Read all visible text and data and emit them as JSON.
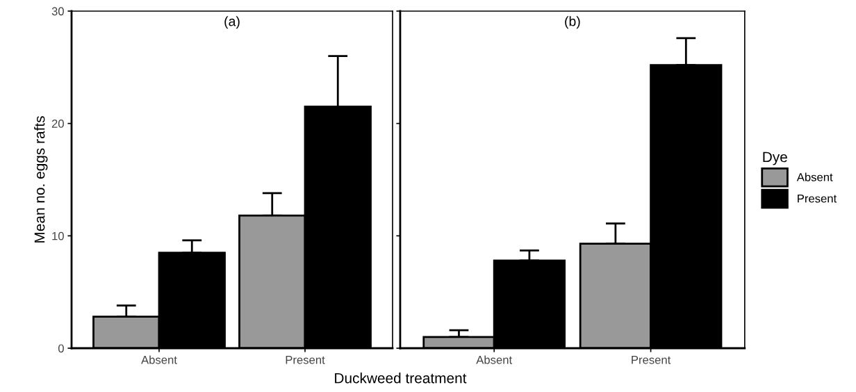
{
  "chart_data": [
    {
      "type": "bar",
      "title": "(a)",
      "xlabel": "Duckweed treatment",
      "ylabel": "Mean no. eggs rafts",
      "categories": [
        "Absent",
        "Present"
      ],
      "series": [
        {
          "color": "#999999",
          "values": [
            2.8,
            11.8
          ],
          "errors": [
            [
              2.8,
              3.8
            ],
            [
              11.8,
              13.8
            ]
          ]
        },
        {
          "color": "#000000",
          "values": [
            8.5,
            21.5
          ],
          "errors": [
            [
              8.5,
              9.6
            ],
            [
              21.5,
              26.0
            ]
          ]
        }
      ],
      "ylim": [
        0,
        30
      ],
      "yticks": [
        0,
        10,
        20,
        30
      ],
      "grid": false
    },
    {
      "type": "bar",
      "title": "(b)",
      "categories": [
        "Absent",
        "Present"
      ],
      "legend_title": "Dye",
      "series": [
        {
          "name": "Absent",
          "color": "#999999",
          "values": [
            1.0,
            9.3
          ],
          "errors": [
            [
              1.0,
              1.6
            ],
            [
              9.3,
              11.1
            ]
          ]
        },
        {
          "name": "Present",
          "color": "#000000",
          "values": [
            7.8,
            25.2
          ],
          "errors": [
            [
              7.8,
              8.7
            ],
            [
              25.2,
              27.6
            ]
          ]
        }
      ],
      "ylim": [
        0,
        30
      ],
      "yticks": [
        0,
        10,
        20,
        30
      ],
      "tick_labels": "x",
      "grid": false,
      "legend": "right"
    }
  ]
}
